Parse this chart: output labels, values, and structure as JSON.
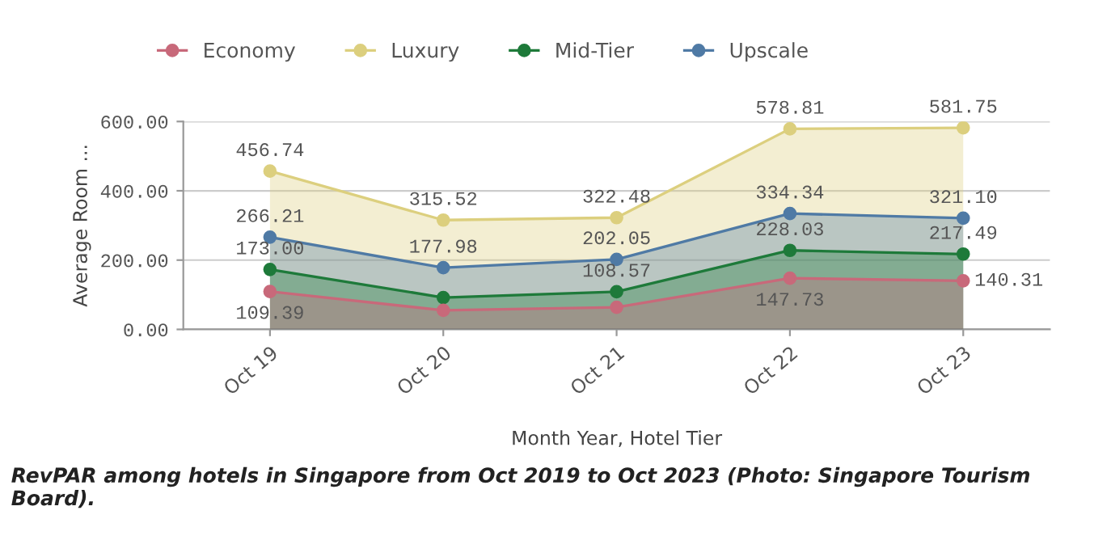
{
  "chart_data": {
    "type": "area",
    "xlabel": "Month Year, Hotel Tier",
    "ylabel": "Average Room ...",
    "categories": [
      "Oct 19",
      "Oct 20",
      "Oct 21",
      "Oct 22",
      "Oct 23"
    ],
    "series": [
      {
        "name": "Economy",
        "color": "#c8697a",
        "values": [
          109.39,
          55,
          64,
          147.73,
          140.31
        ],
        "value_labels": [
          "109.39",
          null,
          null,
          "147.73",
          "140.31"
        ]
      },
      {
        "name": "Luxury",
        "color": "#dccf7e",
        "values": [
          456.74,
          315.52,
          322.48,
          578.81,
          581.75
        ],
        "value_labels": [
          "456.74",
          "315.52",
          "322.48",
          "578.81",
          "581.75"
        ]
      },
      {
        "name": "Mid-Tier",
        "color": "#1e7a3a",
        "values": [
          173.0,
          92,
          108.57,
          228.03,
          217.49
        ],
        "value_labels": [
          "173.00",
          null,
          "108.57",
          "228.03",
          "217.49"
        ]
      },
      {
        "name": "Upscale",
        "color": "#4f7aa5",
        "values": [
          266.21,
          177.98,
          202.05,
          334.34,
          321.1
        ],
        "value_labels": [
          "266.21",
          "177.98",
          "202.05",
          "334.34",
          "321.10"
        ]
      }
    ],
    "ylim": [
      0,
      600
    ],
    "yticks": [
      {
        "value": 0,
        "label": "0.00"
      },
      {
        "value": 200,
        "label": "200.00"
      },
      {
        "value": 400,
        "label": "400.00"
      },
      {
        "value": 600,
        "label": "600.00"
      }
    ],
    "grid": "y",
    "legend": "top left",
    "marker": "circle",
    "annotations": [
      "RevPAR among hotels in Singapore from Oct 2019 to Oct 2023 (Photo: Singapore Tourism Board)."
    ]
  }
}
